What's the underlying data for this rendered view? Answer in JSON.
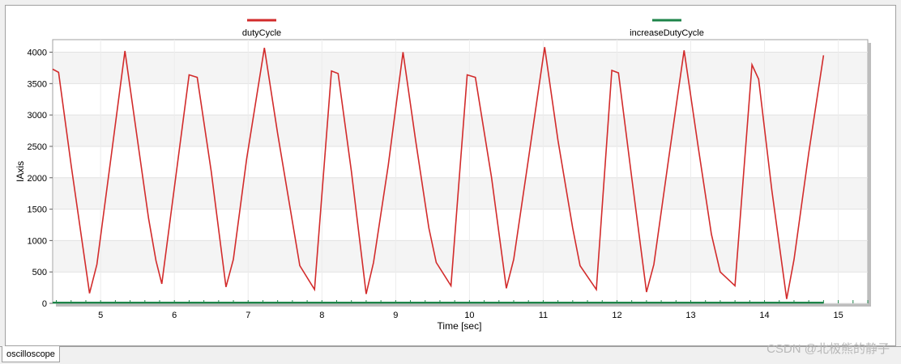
{
  "tab": {
    "label": "oscilloscope"
  },
  "watermark": "CSDN @北极熊的静子",
  "colors": {
    "dutyCycle": "#d22b2b",
    "increaseDutyCycle": "#1e8449"
  },
  "chart_data": {
    "type": "line",
    "title": "",
    "xlabel": "Time [sec]",
    "ylabel": "IAxis",
    "xlim": [
      4.35,
      15.4
    ],
    "ylim": [
      0,
      4200
    ],
    "xticks": [
      5,
      6,
      7,
      8,
      9,
      10,
      11,
      12,
      13,
      14,
      15
    ],
    "yticks": [
      0,
      500,
      1000,
      1500,
      2000,
      2500,
      3000,
      3500,
      4000
    ],
    "grid": true,
    "legend": "top",
    "series": [
      {
        "name": "dutyCycle",
        "color": "#d22b2b",
        "x": [
          4.35,
          4.43,
          4.6,
          4.85,
          4.95,
          5.15,
          5.33,
          5.5,
          5.65,
          5.75,
          5.83,
          5.95,
          6.2,
          6.31,
          6.5,
          6.7,
          6.8,
          6.98,
          7.22,
          7.4,
          7.6,
          7.7,
          7.9,
          8.13,
          8.22,
          8.4,
          8.6,
          8.7,
          8.9,
          9.1,
          9.27,
          9.45,
          9.55,
          9.75,
          9.97,
          10.08,
          10.3,
          10.5,
          10.6,
          10.8,
          11.02,
          11.2,
          11.4,
          11.5,
          11.72,
          11.93,
          12.02,
          12.2,
          12.4,
          12.5,
          12.7,
          12.91,
          13.1,
          13.28,
          13.4,
          13.6,
          13.83,
          13.92,
          14.1,
          14.3,
          14.4,
          14.6,
          14.8
        ],
        "y": [
          3730,
          3680,
          2200,
          160,
          620,
          2400,
          4020,
          2600,
          1350,
          680,
          310,
          1400,
          3640,
          3600,
          2100,
          260,
          700,
          2300,
          4070,
          2700,
          1300,
          600,
          220,
          3700,
          3660,
          2100,
          150,
          650,
          2200,
          4000,
          2600,
          1200,
          650,
          280,
          3640,
          3600,
          2000,
          240,
          700,
          2300,
          4080,
          2600,
          1200,
          600,
          220,
          3710,
          3670,
          2000,
          180,
          620,
          2300,
          4030,
          2500,
          1100,
          500,
          280,
          3800,
          3570,
          1800,
          70,
          700,
          2400,
          3950
        ]
      },
      {
        "name": "increaseDutyCycle",
        "color": "#1e8449",
        "x": [
          4.35,
          14.8
        ],
        "y": [
          10,
          10
        ]
      }
    ]
  }
}
